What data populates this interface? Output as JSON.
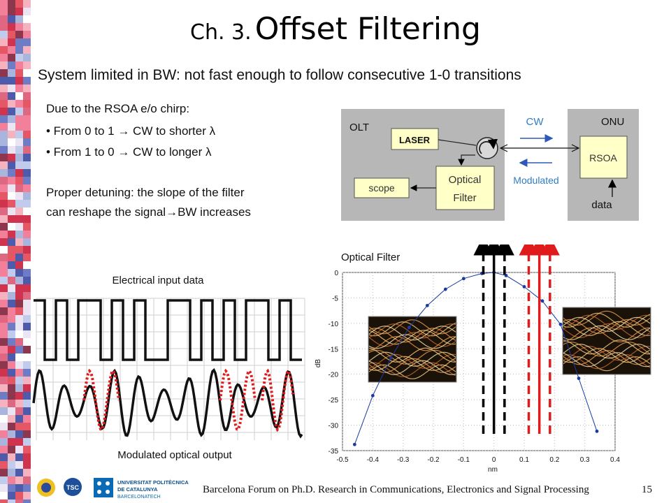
{
  "slide": {
    "title_prefix": "Ch. 3.",
    "title_main": "Offset Filtering",
    "subtitle": "System limited in BW: not fast enough to follow consecutive 1-0 transitions",
    "chirp_intro": "Due to the RSOA e/o chirp:",
    "bullets": [
      "• From 0 to 1 → CW to shorter λ",
      "• From 1 to 0 → CW to longer λ"
    ],
    "detuning_line1": "Proper detuning: the slope of the filter",
    "detuning_line2": "can reshape the signal→BW increases",
    "footer": "Barcelona Forum on Ph.D. Research in Communications, Electronics and Signal Processing",
    "page_number": "15"
  },
  "block_diagram": {
    "olt_label": "OLT",
    "onu_label": "ONU",
    "laser_label": "LASER",
    "scope_label": "scope",
    "filter_label_1": "Optical",
    "filter_label_2": "Filter",
    "rsoa_label": "RSOA",
    "data_label": "data",
    "cw_label": "CW",
    "modulated_label": "Modulated"
  },
  "waveforms": {
    "input_label": "Electrical input data",
    "output_label": "Modulated optical output"
  },
  "logos": {
    "tsc_label": "TSC",
    "upc_line1": "UNIVERSITAT POLITÈCNICA",
    "upc_line2": "DE CATALUNYA",
    "upc_line3": "BARCELONATECH"
  },
  "chart_data": {
    "type": "line",
    "title": "Optical Filter",
    "xlabel": "nm",
    "ylabel": "dB",
    "xlim": [
      -0.5,
      0.4
    ],
    "ylim": [
      -35,
      0
    ],
    "xticks": [
      -0.5,
      -0.4,
      -0.3,
      -0.2,
      -0.1,
      0,
      0.1,
      0.2,
      0.3,
      0.4
    ],
    "yticks": [
      0,
      -5,
      -10,
      -15,
      -20,
      -25,
      -30,
      -35
    ],
    "grid": "dotted",
    "series": [
      {
        "x": [
          -0.46,
          -0.4,
          -0.34,
          -0.28,
          -0.22,
          -0.16,
          -0.1,
          -0.04,
          0.0,
          0.04,
          0.1,
          0.16,
          0.22,
          0.28,
          0.34
        ],
        "y": [
          -33.8,
          -24.2,
          -16.8,
          -10.8,
          -6.5,
          -3.3,
          -1.2,
          -0.2,
          0.0,
          -0.6,
          -2.8,
          -5.6,
          -10.2,
          -20.8,
          -31.2
        ],
        "color": "#1a3aa0"
      }
    ],
    "markers": [
      {
        "x": -0.035,
        "color": "#000000",
        "style": "dashed"
      },
      {
        "x": 0.0,
        "color": "#000000",
        "style": "solid"
      },
      {
        "x": 0.035,
        "color": "#000000",
        "style": "dashed"
      },
      {
        "x": 0.115,
        "color": "#e01b1b",
        "style": "dashed"
      },
      {
        "x": 0.15,
        "color": "#e01b1b",
        "style": "solid"
      },
      {
        "x": 0.185,
        "color": "#e01b1b",
        "style": "dashed"
      }
    ]
  }
}
